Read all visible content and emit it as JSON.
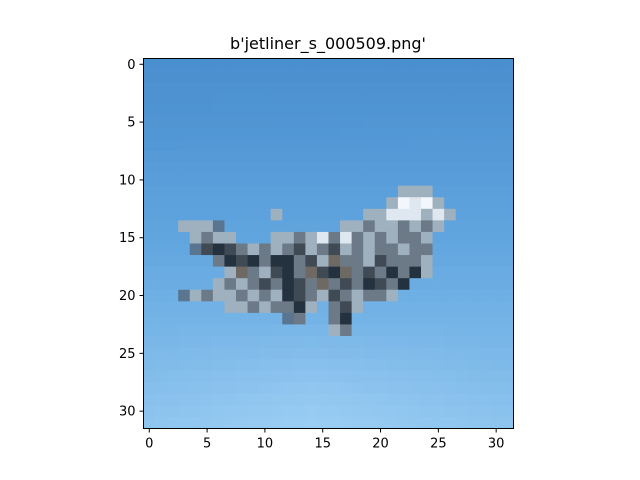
{
  "title": "b'jetliner_s_000509.png'",
  "image": {
    "description_class": "jetliner",
    "grid_size": [
      32,
      32
    ],
    "sky_colors": {
      "top": "#4a8fcf",
      "middle": "#62a6e0",
      "bottom": "#8cc4ee",
      "bottom_center": "#a6d4f7"
    },
    "plane_colors": {
      "dark": "#24313e",
      "mid_dark": "#3f4a55",
      "mid": "#6c7a87",
      "light": "#9fb0bf",
      "highlight": "#dfe8f0",
      "white": "#f3f7fb",
      "shadow_blue": "#5a7590",
      "brownish": "#6e6a63"
    }
  },
  "chart_data": {
    "type": "image",
    "xlim": [
      -0.5,
      31.5
    ],
    "ylim": [
      31.5,
      -0.5
    ],
    "xticks": [
      0,
      5,
      10,
      15,
      20,
      25,
      30
    ],
    "yticks": [
      0,
      5,
      10,
      15,
      20,
      25,
      30
    ],
    "xtick_labels": [
      "0",
      "5",
      "10",
      "15",
      "20",
      "25",
      "30"
    ],
    "ytick_labels": [
      "0",
      "5",
      "10",
      "15",
      "20",
      "25",
      "30"
    ]
  }
}
